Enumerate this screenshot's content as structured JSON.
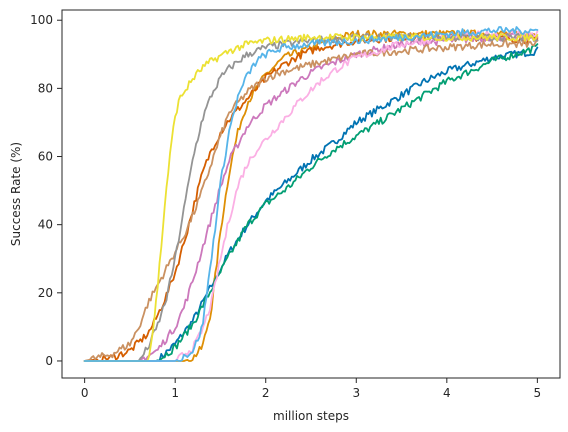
{
  "chart_data": {
    "type": "line",
    "xlabel": "million steps",
    "ylabel": "Success Rate (%)",
    "xlim": [
      -0.25,
      5.25
    ],
    "ylim": [
      -5,
      103
    ],
    "xticks": [
      0,
      1,
      2,
      3,
      4,
      5
    ],
    "xtick_labels": [
      "0",
      "1",
      "2",
      "3",
      "4",
      "5"
    ],
    "yticks": [
      0,
      20,
      40,
      60,
      80,
      100
    ],
    "ytick_labels": [
      "0",
      "20",
      "40",
      "60",
      "80",
      "100"
    ],
    "grid": false,
    "legend": "none",
    "series": [
      {
        "color": "#0173b2",
        "x": [
          0,
          0.8,
          1.0,
          1.2,
          1.4,
          1.6,
          1.8,
          2.0,
          2.25,
          2.5,
          2.75,
          3.0,
          3.25,
          3.5,
          3.75,
          4.0,
          4.25,
          4.5,
          4.75,
          5.0
        ],
        "y": [
          0,
          0,
          5,
          12,
          22,
          32,
          40,
          47,
          53,
          59,
          64,
          70,
          74,
          78,
          82,
          85,
          87,
          89,
          90,
          91
        ]
      },
      {
        "color": "#de8f05",
        "x": [
          0,
          1.1,
          1.2,
          1.3,
          1.4,
          1.5,
          1.6,
          1.7,
          1.8,
          2.0,
          2.2,
          2.5,
          2.8,
          3.0,
          3.5,
          4.0,
          4.5,
          5.0
        ],
        "y": [
          0,
          0,
          1,
          4,
          15,
          38,
          56,
          68,
          76,
          84,
          89,
          92,
          95,
          96,
          96,
          96,
          96,
          96
        ]
      },
      {
        "color": "#029e73",
        "x": [
          0,
          0.8,
          1.0,
          1.2,
          1.4,
          1.6,
          1.8,
          2.0,
          2.25,
          2.5,
          2.75,
          3.0,
          3.25,
          3.5,
          3.75,
          4.0,
          4.25,
          4.5,
          4.75,
          5.0
        ],
        "y": [
          0,
          0,
          4,
          11,
          21,
          31,
          40,
          46,
          51,
          57,
          62,
          66,
          70,
          74,
          78,
          82,
          85,
          88,
          90,
          92
        ]
      },
      {
        "color": "#d55e00",
        "x": [
          0,
          0.3,
          0.5,
          0.7,
          0.8,
          0.9,
          1.0,
          1.1,
          1.2,
          1.3,
          1.4,
          1.5,
          1.6,
          1.7,
          1.8,
          2.0,
          2.2,
          2.4,
          2.6,
          3.0,
          3.5,
          4.0,
          4.5,
          5.0
        ],
        "y": [
          0,
          1,
          3,
          8,
          13,
          19,
          26,
          35,
          45,
          55,
          62,
          67,
          71,
          74,
          77,
          83,
          87,
          90,
          92,
          94,
          95,
          95,
          95,
          94
        ]
      },
      {
        "color": "#cc78bc",
        "x": [
          0,
          0.6,
          0.8,
          1.0,
          1.1,
          1.2,
          1.3,
          1.4,
          1.5,
          1.6,
          1.8,
          2.0,
          2.2,
          2.4,
          2.6,
          2.8,
          3.0,
          3.5,
          4.0,
          4.5,
          5.0
        ],
        "y": [
          0,
          0,
          3,
          10,
          16,
          24,
          33,
          42,
          51,
          59,
          69,
          75,
          79,
          83,
          86,
          88,
          90,
          93,
          94,
          95,
          95
        ]
      },
      {
        "color": "#ca9161",
        "x": [
          0,
          0.3,
          0.5,
          0.6,
          0.7,
          0.8,
          0.9,
          1.0,
          1.1,
          1.2,
          1.3,
          1.4,
          1.5,
          1.6,
          1.8,
          2.0,
          2.2,
          2.5,
          3.0,
          3.5,
          4.0,
          4.5,
          5.0
        ],
        "y": [
          0,
          2,
          5,
          10,
          17,
          22,
          27,
          32,
          37,
          43,
          50,
          58,
          66,
          73,
          79,
          83,
          85,
          87,
          90,
          91,
          92,
          93,
          93
        ]
      },
      {
        "color": "#fbafe4",
        "x": [
          0,
          1.0,
          1.2,
          1.3,
          1.4,
          1.5,
          1.6,
          1.7,
          1.8,
          1.9,
          2.0,
          2.2,
          2.4,
          2.6,
          2.8,
          3.0,
          3.5,
          4.0,
          4.5,
          5.0
        ],
        "y": [
          0,
          0,
          4,
          9,
          17,
          30,
          42,
          52,
          58,
          62,
          65,
          71,
          77,
          82,
          86,
          89,
          93,
          95,
          96,
          96
        ]
      },
      {
        "color": "#949494",
        "x": [
          0,
          0.6,
          0.7,
          0.8,
          0.9,
          1.0,
          1.1,
          1.2,
          1.3,
          1.4,
          1.5,
          1.6,
          1.8,
          2.0,
          2.2,
          2.5,
          3.0,
          3.5,
          4.0,
          4.5,
          5.0
        ],
        "y": [
          0,
          0,
          4,
          10,
          18,
          30,
          45,
          60,
          71,
          78,
          83,
          86,
          90,
          92,
          93,
          94,
          95,
          95,
          95,
          95,
          95
        ]
      },
      {
        "color": "#ece133",
        "x": [
          0,
          0.7,
          0.75,
          0.8,
          0.85,
          0.9,
          0.95,
          1.0,
          1.05,
          1.1,
          1.2,
          1.3,
          1.4,
          1.6,
          1.8,
          2.0,
          2.5,
          3.0,
          3.5,
          4.0,
          4.5,
          5.0
        ],
        "y": [
          0,
          0,
          8,
          20,
          35,
          50,
          62,
          72,
          77,
          79,
          83,
          86,
          88,
          91,
          93,
          94,
          95,
          95,
          95,
          95,
          95,
          95
        ]
      },
      {
        "color": "#56b4e9",
        "x": [
          0,
          1.0,
          1.2,
          1.3,
          1.4,
          1.5,
          1.6,
          1.7,
          1.8,
          1.9,
          2.0,
          2.2,
          2.5,
          3.0,
          3.5,
          4.0,
          4.5,
          5.0
        ],
        "y": [
          0,
          0,
          3,
          10,
          30,
          52,
          68,
          78,
          84,
          88,
          90,
          92,
          93,
          94,
          95,
          96,
          97,
          97
        ]
      }
    ]
  }
}
